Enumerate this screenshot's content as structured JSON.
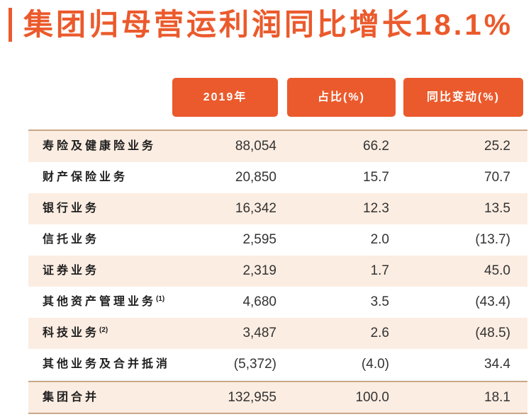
{
  "title": "集团归母营运利润同比增长18.1%",
  "table": {
    "headers": {
      "year": "2019年",
      "share": "占比(%)",
      "yoy": "同比变动(%)"
    },
    "rows": [
      {
        "label": "寿险及健康险业务",
        "value": "88,054",
        "share": "66.2",
        "yoy": "25.2"
      },
      {
        "label": "财产保险业务",
        "value": "20,850",
        "share": "15.7",
        "yoy": "70.7"
      },
      {
        "label": "银行业务",
        "value": "16,342",
        "share": "12.3",
        "yoy": "13.5"
      },
      {
        "label": "信托业务",
        "value": "2,595",
        "share": "2.0",
        "yoy": "(13.7)"
      },
      {
        "label": "证券业务",
        "value": "2,319",
        "share": "1.7",
        "yoy": "45.0"
      },
      {
        "label": "其他资产管理业务",
        "note": "(1)",
        "value": "4,680",
        "share": "3.5",
        "yoy": "(43.4)"
      },
      {
        "label": "科技业务",
        "note": "(2)",
        "value": "3,487",
        "share": "2.6",
        "yoy": "(48.5)"
      },
      {
        "label": "其他业务及合并抵消",
        "value": "(5,372)",
        "share": "(4.0)",
        "yoy": "34.4"
      }
    ],
    "total": {
      "label": "集团合并",
      "value": "132,955",
      "share": "100.0",
      "yoy": "18.1"
    }
  },
  "colors": {
    "accent": "#EB5A2C",
    "band": "#FCEDE2",
    "rule": "#C9A888",
    "text": "#1E1E1E",
    "value": "#333333"
  }
}
